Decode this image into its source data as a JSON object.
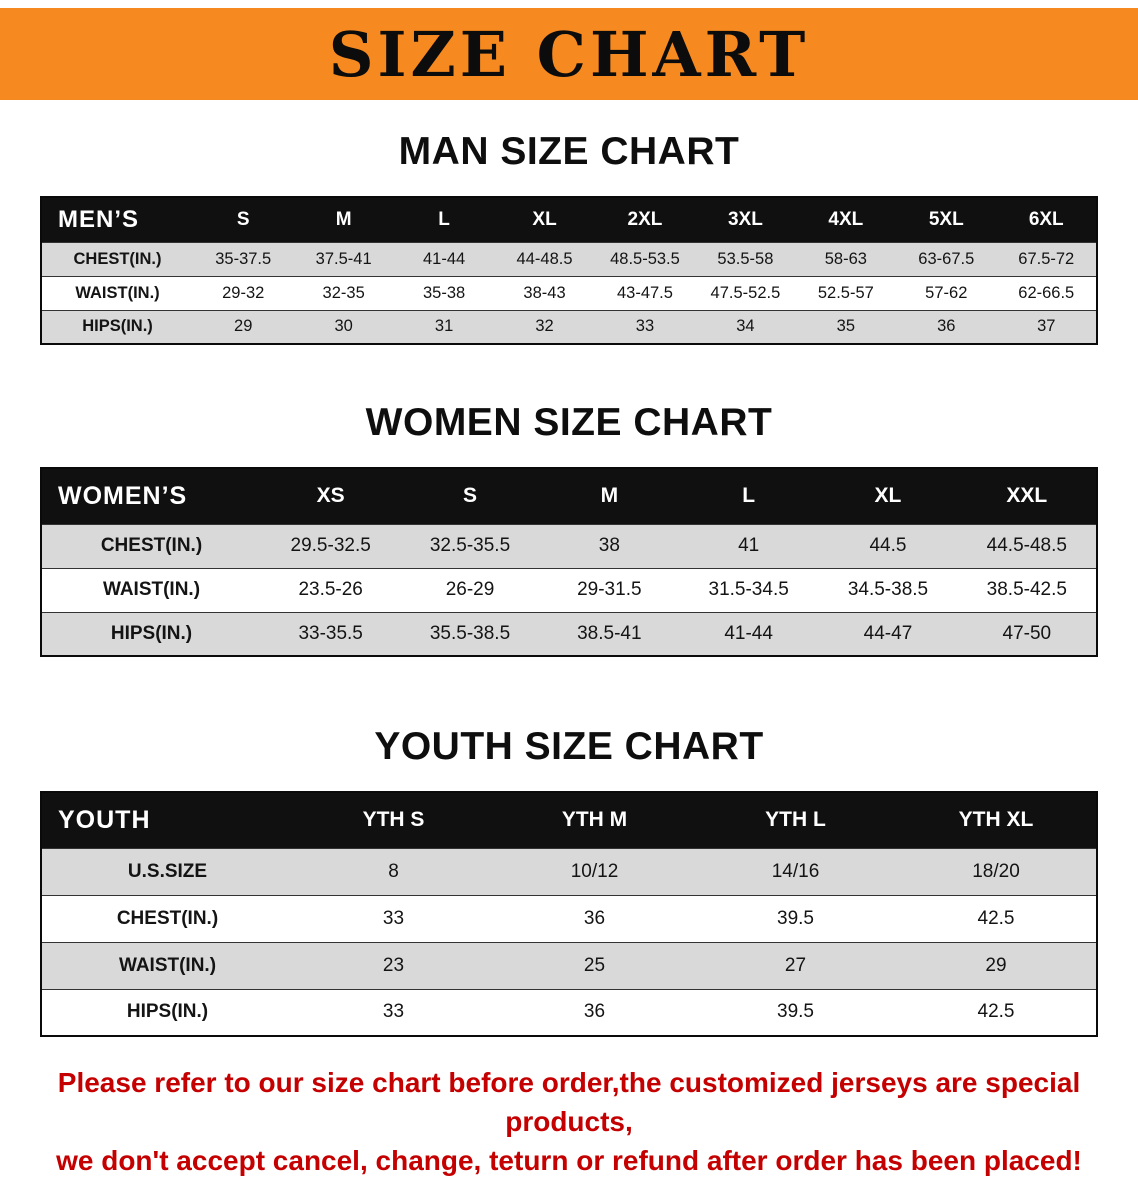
{
  "banner": {
    "title": "SIZE CHART"
  },
  "colors": {
    "banner_orange": "#F6891F",
    "table_header_black": "#101010",
    "row_stripe_gray": "#D9D9D9",
    "notice_red": "#C40000"
  },
  "sections": [
    {
      "heading": "MAN SIZE CHART",
      "table": {
        "header_label": "MEN’S",
        "columns": [
          "S",
          "M",
          "L",
          "XL",
          "2XL",
          "3XL",
          "4XL",
          "5XL",
          "6XL"
        ],
        "rows": [
          {
            "label": "CHEST(IN.)",
            "values": [
              "35-37.5",
              "37.5-41",
              "41-44",
              "44-48.5",
              "48.5-53.5",
              "53.5-58",
              "58-63",
              "63-67.5",
              "67.5-72"
            ]
          },
          {
            "label": "WAIST(IN.)",
            "values": [
              "29-32",
              "32-35",
              "35-38",
              "38-43",
              "43-47.5",
              "47.5-52.5",
              "52.5-57",
              "57-62",
              "62-66.5"
            ]
          },
          {
            "label": "HIPS(IN.)",
            "values": [
              "29",
              "30",
              "31",
              "32",
              "33",
              "34",
              "35",
              "36",
              "37"
            ]
          }
        ]
      }
    },
    {
      "heading": "WOMEN SIZE CHART",
      "table": {
        "header_label": "WOMEN’S",
        "columns": [
          "XS",
          "S",
          "M",
          "L",
          "XL",
          "XXL"
        ],
        "rows": [
          {
            "label": "CHEST(IN.)",
            "values": [
              "29.5-32.5",
              "32.5-35.5",
              "38",
              "41",
              "44.5",
              "44.5-48.5"
            ]
          },
          {
            "label": "WAIST(IN.)",
            "values": [
              "23.5-26",
              "26-29",
              "29-31.5",
              "31.5-34.5",
              "34.5-38.5",
              "38.5-42.5"
            ]
          },
          {
            "label": "HIPS(IN.)",
            "values": [
              "33-35.5",
              "35.5-38.5",
              "38.5-41",
              "41-44",
              "44-47",
              "47-50"
            ]
          }
        ]
      }
    },
    {
      "heading": "YOUTH SIZE CHART",
      "table": {
        "header_label": "YOUTH",
        "columns": [
          "YTH S",
          "YTH M",
          "YTH L",
          "YTH XL"
        ],
        "rows": [
          {
            "label": "U.S.SIZE",
            "values": [
              "8",
              "10/12",
              "14/16",
              "18/20"
            ]
          },
          {
            "label": "CHEST(IN.)",
            "values": [
              "33",
              "36",
              "39.5",
              "42.5"
            ]
          },
          {
            "label": "WAIST(IN.)",
            "values": [
              "23",
              "25",
              "27",
              "29"
            ]
          },
          {
            "label": "HIPS(IN.)",
            "values": [
              "33",
              "36",
              "39.5",
              "42.5"
            ]
          }
        ]
      }
    }
  ],
  "footer": {
    "line1": "Please refer to our size chart before order,the customized jerseys are special products,",
    "line2": "we don't accept cancel, change, teturn or refund after order has been placed!"
  }
}
